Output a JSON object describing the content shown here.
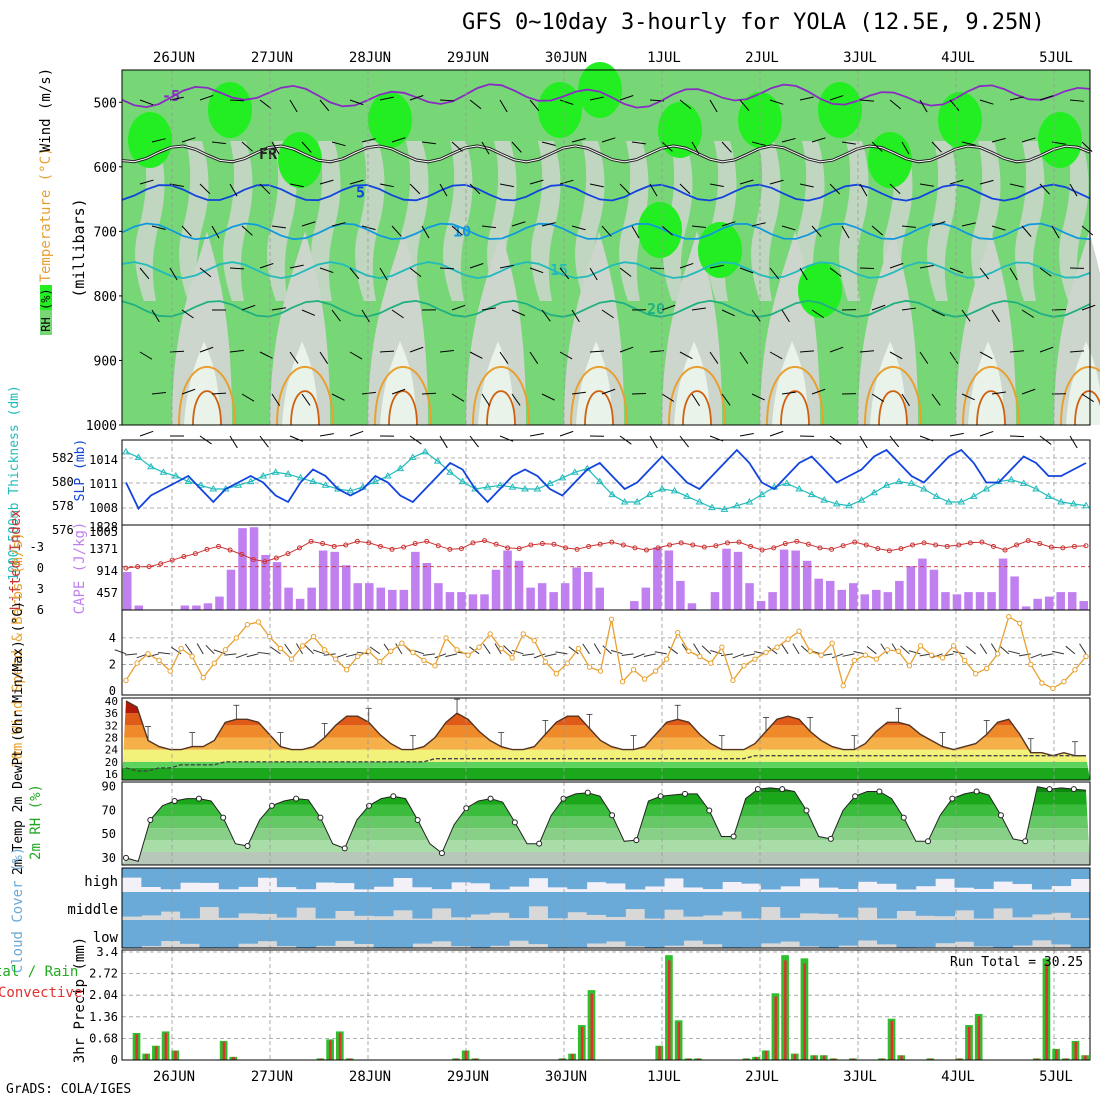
{
  "title": "GFS 0~10day 3-hourly for YOLA (12.5E, 9.25N)",
  "footer": "GrADS: COLA/IGES",
  "colors": {
    "rh_light": "#e9f3e9",
    "rh_grey": "#cdd6cd",
    "rh_green": "#77d777",
    "rh_bright": "#22ee22",
    "purple": "#8a2bc4",
    "blue": "#1144dd",
    "lightblue": "#1199dd",
    "teal": "#22bbbb",
    "orange": "#e8a030",
    "red": "#cc3333",
    "cape": "#c080f0",
    "wind10": "#e8a030",
    "cloud": "#6aaad8",
    "precip_green": "#2dbf2d",
    "precip_red": "#e03030"
  },
  "chart_data": [
    {
      "type": "heatmap",
      "panel": "upper-air",
      "ylabel_parts": [
        "RH (%)",
        "Temperature (°C)",
        "Wind (m/s)"
      ],
      "yaxis_title": "(millibars)",
      "x_dates": [
        "26JUN",
        "27JUN",
        "28JUN",
        "29JUN",
        "30JUN",
        "1JUL",
        "2JUL",
        "3JUL",
        "4JUL",
        "5JUL"
      ],
      "ylim": [
        1000,
        450
      ],
      "ticks": [
        500,
        600,
        700,
        800,
        900,
        1000
      ],
      "grid": true,
      "isotherms": [
        {
          "label": "-5",
          "level": 490
        },
        {
          "label": "FR",
          "level": 580
        },
        {
          "label": "5",
          "level": 640
        },
        {
          "label": "10",
          "level": 700
        },
        {
          "label": "15",
          "level": 760
        },
        {
          "label": "20",
          "level": 820
        }
      ]
    },
    {
      "type": "line",
      "panel": "thickness-slp",
      "ylabel_left": "1000-500mb Thickness (dm)",
      "ylabel_right": "SLP (mb)",
      "thickness_ticks": [
        "582",
        "580",
        "578",
        "576"
      ],
      "slp_ticks": [
        "1014",
        "1011",
        "1008",
        "1005"
      ],
      "series": [
        {
          "name": "SLP (mb)",
          "values": [
            1010,
            1006,
            1008,
            1009,
            1010,
            1011,
            1009,
            1007,
            1009,
            1010,
            1011,
            1010,
            1008,
            1007,
            1010,
            1012,
            1011,
            1009,
            1008,
            1009,
            1011,
            1010,
            1008,
            1007,
            1009,
            1011,
            1013,
            1012,
            1009,
            1007,
            1009,
            1011,
            1012,
            1011,
            1009,
            1008,
            1010,
            1012,
            1013,
            1011,
            1009,
            1010,
            1012,
            1014,
            1012,
            1010,
            1009,
            1011,
            1013,
            1015,
            1013,
            1010,
            1009,
            1011,
            1013,
            1014,
            1012,
            1010,
            1011,
            1012,
            1014,
            1015,
            1013,
            1011,
            1010,
            1012,
            1014,
            1015,
            1013,
            1010,
            1010,
            1012,
            1014,
            1013,
            1011,
            1011,
            1012,
            1013
          ]
        },
        {
          "name": "Thickness (dm)",
          "values": [
            582.8,
            582.2,
            581.2,
            580.6,
            580.2,
            579.6,
            579.2,
            578.8,
            578.8,
            579.2,
            579.6,
            580.2,
            580.6,
            580.4,
            580.0,
            579.6,
            579.2,
            578.8,
            578.6,
            579.0,
            579.6,
            580.2,
            581.0,
            582.2,
            582.8,
            581.8,
            580.6,
            579.6,
            578.8,
            579.0,
            579.2,
            579.0,
            578.8,
            578.8,
            579.4,
            580.0,
            580.6,
            581.0,
            579.6,
            578.2,
            577.4,
            577.4,
            578.2,
            578.8,
            578.6,
            578.0,
            577.4,
            576.8,
            576.6,
            577.0,
            577.4,
            578.2,
            579.0,
            579.4,
            578.8,
            578.2,
            577.6,
            577.2,
            577.0,
            577.6,
            578.4,
            579.2,
            579.6,
            579.4,
            578.8,
            578.0,
            577.4,
            577.4,
            578.0,
            578.8,
            579.6,
            579.8,
            579.4,
            578.8,
            578.0,
            577.4,
            577.2,
            577.0
          ]
        }
      ]
    },
    {
      "type": "bar",
      "panel": "cape-lifted-index",
      "ylabel_left": "Lifted Index",
      "ylabel_right": "CAPE (J/kg)",
      "li_ticks": [
        "-3",
        "0",
        "3",
        "6"
      ],
      "cape_ticks": [
        "1828",
        "1371",
        "914",
        "457"
      ],
      "series": [
        {
          "name": "CAPE (J/kg)",
          "values": [
            850,
            100,
            0,
            0,
            0,
            100,
            100,
            150,
            300,
            900,
            1830,
            1850,
            1230,
            1070,
            500,
            250,
            500,
            1330,
            1300,
            1000,
            600,
            600,
            500,
            450,
            450,
            1300,
            1050,
            600,
            400,
            400,
            350,
            350,
            900,
            1330,
            1100,
            500,
            600,
            400,
            600,
            950,
            850,
            500,
            0,
            0,
            200,
            500,
            1400,
            1330,
            650,
            150,
            0,
            400,
            1370,
            1300,
            600,
            200,
            400,
            1350,
            1330,
            1100,
            700,
            650,
            450,
            600,
            350,
            450,
            400,
            650,
            980,
            1150,
            900,
            400,
            350,
            400,
            400,
            400,
            1150,
            750,
            80,
            250,
            300,
            400,
            400,
            200
          ]
        },
        {
          "name": "Lifted Index",
          "values": [
            0.2,
            0.0,
            0.0,
            -0.4,
            -0.9,
            -1.4,
            -1.8,
            -2.4,
            -2.8,
            -2.3,
            -1.7,
            -1.0,
            -0.7,
            -1.2,
            -1.8,
            -2.6,
            -3.5,
            -3.2,
            -2.8,
            -3.0,
            -3.5,
            -3.3,
            -2.8,
            -2.4,
            -2.7,
            -3.2,
            -3.5,
            -2.9,
            -2.4,
            -2.5,
            -3.3,
            -3.6,
            -3.1,
            -2.6,
            -2.5,
            -3.0,
            -3.2,
            -3.1,
            -2.6,
            -2.4,
            -2.8,
            -3.1,
            -3.4,
            -3.0,
            -2.6,
            -2.3,
            -2.6,
            -3.0,
            -3.3,
            -3.0,
            -2.7,
            -2.9,
            -3.3,
            -3.4,
            -2.8,
            -2.3,
            -2.6,
            -3.2,
            -3.5,
            -3.1,
            -2.6,
            -2.4,
            -2.9,
            -3.4,
            -3.0,
            -2.5,
            -2.2,
            -2.5,
            -3.0,
            -3.3,
            -3.0,
            -2.8,
            -3.0,
            -3.3,
            -3.4,
            -2.8,
            -2.3,
            -3.0,
            -3.6,
            -3.2,
            -2.7,
            -2.6,
            -2.8,
            -2.9
          ]
        }
      ]
    },
    {
      "type": "line",
      "panel": "10m-wind",
      "ylabel": "10m Wind Speed & Barbs (m/s)",
      "ylim": [
        0,
        5.8
      ],
      "ticks": [
        0,
        2,
        4
      ],
      "series": [
        {
          "name": "Speed",
          "values": [
            0.8,
            2.1,
            2.8,
            2.3,
            1.5,
            3.2,
            2.6,
            1.0,
            2.1,
            3.1,
            4.0,
            5.0,
            5.2,
            4.1,
            3.2,
            2.4,
            3.4,
            4.1,
            3.1,
            2.4,
            1.6,
            2.6,
            3.0,
            2.2,
            3.0,
            3.6,
            2.9,
            2.3,
            1.9,
            4.0,
            3.1,
            2.7,
            3.3,
            4.3,
            3.2,
            2.5,
            4.3,
            3.8,
            2.2,
            1.3,
            2.1,
            3.2,
            1.8,
            1.5,
            5.4,
            0.7,
            1.6,
            0.9,
            1.5,
            2.4,
            4.4,
            3.0,
            2.6,
            2.1,
            3.3,
            0.8,
            1.9,
            2.4,
            2.9,
            3.3,
            3.9,
            4.5,
            3.0,
            2.7,
            3.6,
            0.4,
            2.3,
            2.7,
            2.4,
            3.1,
            3.0,
            1.9,
            3.4,
            2.7,
            2.5,
            3.4,
            2.3,
            1.3,
            1.7,
            2.8,
            5.6,
            5.1,
            2.0,
            0.6,
            0.2,
            0.7,
            1.6,
            2.6
          ]
        }
      ]
    },
    {
      "type": "area",
      "panel": "2m-temp",
      "ylabel": "2m Temp 2m DewPt (6hr Min/Max) (°C)",
      "ylim": [
        14,
        41
      ],
      "ticks": [
        16,
        20,
        24,
        28,
        32,
        36,
        40
      ],
      "series": [
        {
          "name": "2m Temp",
          "values": [
            40,
            38,
            27,
            25,
            24,
            24,
            25,
            25,
            27,
            33,
            34,
            34,
            33,
            29,
            25,
            24,
            24,
            25,
            28,
            32,
            35,
            35,
            33,
            29,
            26,
            24,
            24,
            25,
            28,
            33,
            36,
            34,
            30,
            27,
            25,
            24,
            24,
            25,
            29,
            33,
            35,
            35,
            31,
            27,
            25,
            24,
            24,
            25,
            29,
            33,
            34,
            33,
            29,
            26,
            24,
            24,
            24,
            26,
            30,
            34,
            35,
            34,
            30,
            27,
            25,
            24,
            24,
            26,
            30,
            33,
            33,
            32,
            29,
            27,
            25,
            24,
            25,
            26,
            29,
            33,
            34,
            29,
            23,
            23,
            22,
            23,
            22,
            22
          ]
        },
        {
          "name": "2m DewPt",
          "values": [
            18,
            17,
            17,
            18,
            18,
            19,
            19,
            19,
            19,
            20,
            20,
            20,
            20,
            20,
            20,
            20,
            20,
            20,
            20,
            20,
            20,
            20,
            20,
            20,
            20,
            20,
            20,
            20,
            21,
            21,
            21,
            21,
            21,
            21,
            21,
            21,
            21,
            21,
            21,
            21,
            21,
            21,
            21,
            21,
            21,
            21,
            21,
            21,
            21,
            21,
            21,
            21,
            21,
            21,
            21,
            21,
            21,
            22,
            22,
            22,
            22,
            22,
            22,
            22,
            22,
            22,
            22,
            22,
            22,
            22,
            22,
            22,
            22,
            22,
            22,
            22,
            22,
            22,
            22,
            22,
            22,
            22,
            22,
            22,
            22,
            22,
            22,
            22
          ]
        }
      ]
    },
    {
      "type": "area",
      "panel": "2m-rh",
      "ylabel": "2m RH (%)",
      "ylim": [
        24,
        94
      ],
      "ticks": [
        30,
        50,
        70,
        90
      ],
      "series": [
        {
          "name": "2m RH",
          "values": [
            30,
            27,
            62,
            74,
            78,
            80,
            80,
            78,
            64,
            42,
            40,
            62,
            74,
            78,
            80,
            79,
            64,
            42,
            38,
            62,
            74,
            80,
            82,
            80,
            62,
            42,
            34,
            58,
            72,
            78,
            80,
            77,
            60,
            42,
            42,
            66,
            80,
            84,
            85,
            82,
            66,
            44,
            45,
            78,
            82,
            83,
            84,
            84,
            70,
            48,
            48,
            80,
            88,
            89,
            88,
            86,
            70,
            48,
            46,
            70,
            82,
            86,
            86,
            80,
            64,
            44,
            44,
            66,
            80,
            84,
            86,
            83,
            66,
            46,
            44,
            90,
            88,
            89,
            88,
            87
          ]
        }
      ]
    },
    {
      "type": "area",
      "panel": "cloud-cover",
      "ylabel": "Cloud Cover (%)",
      "levels": [
        "high",
        "middle",
        "low"
      ]
    },
    {
      "type": "bar",
      "panel": "precip",
      "ylabel": "3hr Precip (mm)",
      "ylabel_left": "Total / Rain Convective",
      "annotation_label": "Run Total",
      "annotation_value": "30.25",
      "ylim": [
        0,
        3.4
      ],
      "ticks": [
        "0.68",
        "1.36",
        "2.04",
        "2.72",
        "3.4"
      ],
      "series": [
        {
          "name": "Total",
          "values": [
            0,
            0.85,
            0.2,
            0.45,
            0.9,
            0.3,
            0,
            0,
            0,
            0,
            0.6,
            0.1,
            0,
            0,
            0,
            0,
            0,
            0,
            0,
            0,
            0.05,
            0.65,
            0.9,
            0.05,
            0,
            0,
            0,
            0,
            0,
            0,
            0,
            0,
            0,
            0,
            0.05,
            0.3,
            0.05,
            0,
            0,
            0,
            0,
            0,
            0,
            0,
            0,
            0.05,
            0.2,
            1.1,
            2.2,
            0,
            0,
            0,
            0,
            0,
            0,
            0.45,
            3.3,
            1.25,
            0.05,
            0.05,
            0,
            0,
            0,
            0,
            0.05,
            0.1,
            0.3,
            2.1,
            3.3,
            0.2,
            3.2,
            0.15,
            0.15,
            0.05,
            0,
            0.05,
            0,
            0,
            0.05,
            1.3,
            0.15,
            0,
            0,
            0.05,
            0,
            0,
            0.05,
            1.1,
            1.45,
            0,
            0,
            0,
            0,
            0,
            0.05,
            3.2,
            0.35,
            0.05,
            0.6,
            0.15
          ]
        }
      ]
    }
  ],
  "date_axis": [
    "26JUN",
    "27JUN",
    "28JUN",
    "29JUN",
    "30JUN",
    "1JUL",
    "2JUL",
    "3JUL",
    "4JUL",
    "5JUL"
  ]
}
